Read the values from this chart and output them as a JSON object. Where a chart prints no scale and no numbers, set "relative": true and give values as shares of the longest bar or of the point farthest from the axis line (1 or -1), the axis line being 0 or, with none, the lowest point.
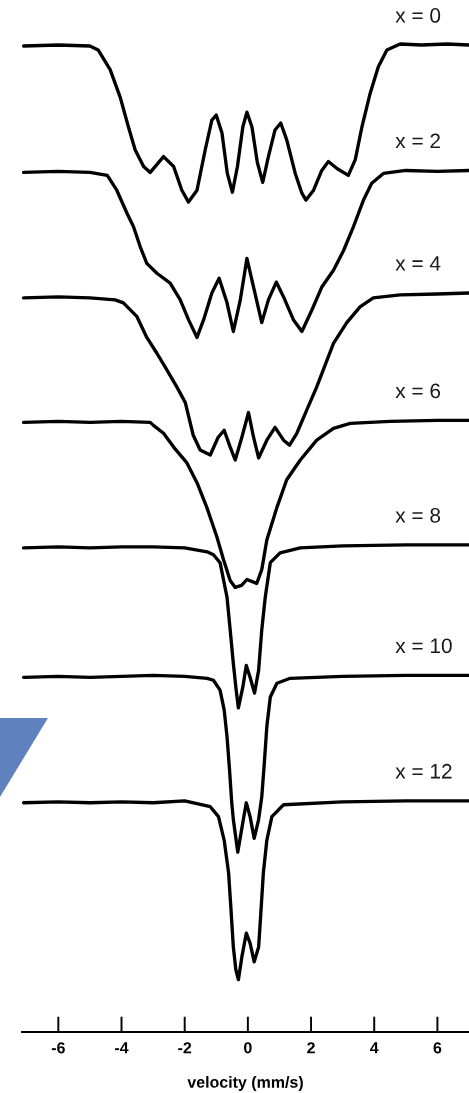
{
  "chart_data": {
    "type": "line",
    "relative": true,
    "xlabel": "velocity (mm/s)",
    "xlim": [
      -7.15,
      7.0
    ],
    "xticks": [
      -6,
      -4,
      -2,
      0,
      2,
      4,
      6
    ],
    "tick_labels": "x",
    "series": [
      {
        "name": "x = 0",
        "color": "#000000",
        "x": [
          -7.1,
          -6.0,
          -5.0,
          -4.74,
          -4.36,
          -4.04,
          -3.78,
          -3.57,
          -3.3,
          -3.09,
          -2.67,
          -2.35,
          -2.09,
          -1.88,
          -1.61,
          -1.35,
          -1.14,
          -1.0,
          -0.82,
          -0.65,
          -0.49,
          -0.33,
          -0.16,
          -0.03,
          0.13,
          0.3,
          0.47,
          0.65,
          0.86,
          1.04,
          1.23,
          1.5,
          1.71,
          1.84,
          2.08,
          2.34,
          2.55,
          2.82,
          3.18,
          3.4,
          3.61,
          3.87,
          4.13,
          4.4,
          4.82,
          5.5,
          6.3,
          7.0
        ],
        "values": [
          0.998,
          0.999,
          0.998,
          0.994,
          0.974,
          0.946,
          0.916,
          0.893,
          0.876,
          0.87,
          0.886,
          0.876,
          0.852,
          0.84,
          0.852,
          0.893,
          0.923,
          0.928,
          0.91,
          0.869,
          0.85,
          0.876,
          0.916,
          0.931,
          0.916,
          0.88,
          0.86,
          0.886,
          0.913,
          0.92,
          0.903,
          0.869,
          0.849,
          0.842,
          0.852,
          0.872,
          0.881,
          0.874,
          0.867,
          0.883,
          0.916,
          0.95,
          0.977,
          0.994,
          1.0,
          0.999,
          1.0,
          0.999
        ]
      },
      {
        "name": "x = 2",
        "color": "#000000",
        "x": [
          -7.1,
          -6.0,
          -5.0,
          -4.45,
          -4.15,
          -3.83,
          -3.62,
          -3.41,
          -3.2,
          -2.88,
          -2.46,
          -2.14,
          -1.88,
          -1.61,
          -1.4,
          -1.14,
          -0.91,
          -0.66,
          -0.46,
          -0.24,
          -0.03,
          0.18,
          0.44,
          0.65,
          0.9,
          1.13,
          1.44,
          1.71,
          2.03,
          2.34,
          2.71,
          3.03,
          3.34,
          3.66,
          3.92,
          4.29,
          5.0,
          6.0,
          7.0
        ],
        "values": [
          0.87,
          0.871,
          0.87,
          0.867,
          0.852,
          0.829,
          0.815,
          0.795,
          0.778,
          0.768,
          0.758,
          0.741,
          0.721,
          0.703,
          0.721,
          0.748,
          0.763,
          0.738,
          0.709,
          0.741,
          0.783,
          0.754,
          0.718,
          0.741,
          0.759,
          0.744,
          0.721,
          0.709,
          0.731,
          0.754,
          0.771,
          0.791,
          0.815,
          0.842,
          0.859,
          0.869,
          0.872,
          0.871,
          0.872
        ]
      },
      {
        "name": "x = 4",
        "color": "#000000",
        "x": [
          -7.1,
          -6.0,
          -5.0,
          -4.2,
          -3.94,
          -3.51,
          -3.2,
          -2.88,
          -2.56,
          -2.25,
          -1.98,
          -1.73,
          -1.51,
          -1.19,
          -0.94,
          -0.75,
          -0.56,
          -0.4,
          -0.19,
          0.02,
          0.18,
          0.34,
          0.6,
          0.86,
          1.13,
          1.32,
          1.55,
          1.87,
          2.18,
          2.71,
          3.13,
          3.55,
          3.97,
          4.82,
          6.0,
          7.0
        ],
        "values": [
          0.743,
          0.744,
          0.743,
          0.741,
          0.738,
          0.724,
          0.703,
          0.687,
          0.67,
          0.653,
          0.637,
          0.604,
          0.589,
          0.584,
          0.602,
          0.609,
          0.592,
          0.579,
          0.602,
          0.627,
          0.602,
          0.581,
          0.599,
          0.612,
          0.599,
          0.594,
          0.606,
          0.63,
          0.653,
          0.697,
          0.718,
          0.734,
          0.743,
          0.746,
          0.747,
          0.748
        ]
      },
      {
        "name": "x = 6",
        "color": "#000000",
        "x": [
          -7.1,
          -6.0,
          -5.0,
          -4.0,
          -3.09,
          -2.99,
          -2.67,
          -2.35,
          -1.93,
          -1.61,
          -1.3,
          -0.98,
          -0.77,
          -0.56,
          -0.4,
          -0.2,
          -0.03,
          0.28,
          0.44,
          0.6,
          0.92,
          1.23,
          1.66,
          2.18,
          2.71,
          3.24,
          4.5,
          6.0,
          7.0
        ],
        "values": [
          0.617,
          0.618,
          0.617,
          0.618,
          0.617,
          0.614,
          0.606,
          0.592,
          0.576,
          0.556,
          0.531,
          0.501,
          0.478,
          0.457,
          0.45,
          0.452,
          0.458,
          0.454,
          0.468,
          0.498,
          0.531,
          0.559,
          0.579,
          0.599,
          0.611,
          0.616,
          0.618,
          0.619,
          0.619
        ]
      },
      {
        "name": "x = 8",
        "color": "#000000",
        "x": [
          -7.1,
          -6.0,
          -5.0,
          -4.0,
          -3.0,
          -2.0,
          -1.29,
          -1.09,
          -0.88,
          -0.66,
          -0.56,
          -0.46,
          -0.37,
          -0.3,
          -0.16,
          -0.05,
          0.07,
          0.21,
          0.34,
          0.44,
          0.55,
          0.71,
          1.02,
          1.66,
          3.0,
          5.0,
          7.0
        ],
        "values": [
          0.49,
          0.491,
          0.49,
          0.491,
          0.491,
          0.49,
          0.486,
          0.483,
          0.475,
          0.44,
          0.407,
          0.373,
          0.346,
          0.328,
          0.349,
          0.371,
          0.359,
          0.343,
          0.366,
          0.407,
          0.44,
          0.475,
          0.485,
          0.49,
          0.492,
          0.493,
          0.493
        ]
      },
      {
        "name": "x = 10",
        "color": "#000000",
        "x": [
          -7.1,
          -6.0,
          -5.0,
          -4.0,
          -3.0,
          -2.0,
          -1.29,
          -1.09,
          -0.88,
          -0.75,
          -0.66,
          -0.58,
          -0.51,
          -0.46,
          -0.32,
          -0.16,
          -0.05,
          0.07,
          0.2,
          0.34,
          0.44,
          0.52,
          0.6,
          0.71,
          0.92,
          1.34,
          3.0,
          5.0,
          7.0
        ],
        "values": [
          0.359,
          0.36,
          0.359,
          0.36,
          0.361,
          0.36,
          0.358,
          0.356,
          0.346,
          0.326,
          0.299,
          0.265,
          0.232,
          0.215,
          0.182,
          0.212,
          0.232,
          0.218,
          0.196,
          0.215,
          0.238,
          0.272,
          0.309,
          0.339,
          0.353,
          0.358,
          0.36,
          0.361,
          0.361
        ]
      },
      {
        "name": "x = 12",
        "color": "#000000",
        "x": [
          -7.1,
          -6.0,
          -5.0,
          -4.0,
          -3.0,
          -2.0,
          -1.19,
          -0.93,
          -0.75,
          -0.61,
          -0.54,
          -0.46,
          -0.38,
          -0.3,
          -0.19,
          -0.05,
          0.07,
          0.2,
          0.34,
          0.41,
          0.49,
          0.6,
          0.76,
          1.13,
          3.0,
          5.0,
          7.0
        ],
        "values": [
          0.232,
          0.233,
          0.232,
          0.233,
          0.232,
          0.234,
          0.228,
          0.218,
          0.194,
          0.161,
          0.127,
          0.086,
          0.063,
          0.053,
          0.076,
          0.1,
          0.09,
          0.071,
          0.086,
          0.12,
          0.161,
          0.194,
          0.218,
          0.23,
          0.233,
          0.234,
          0.234
        ]
      }
    ]
  }
}
